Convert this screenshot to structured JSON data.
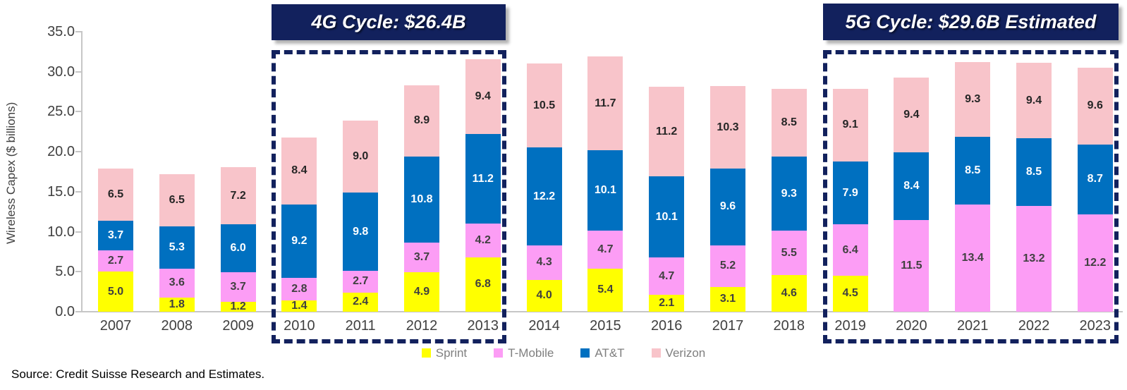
{
  "chart_data": {
    "type": "bar",
    "stacked": true,
    "title": "",
    "xlabel": "",
    "ylabel": "Wireless Capex ($ billions)",
    "ylim": [
      0,
      35
    ],
    "yticks": [
      0,
      5,
      10,
      15,
      20,
      25,
      30,
      35
    ],
    "grid": false,
    "legend_position": "bottom",
    "categories": [
      "2007",
      "2008",
      "2009",
      "2010",
      "2011",
      "2012",
      "2013",
      "2014",
      "2015",
      "2016",
      "2017",
      "2018",
      "2019",
      "2020",
      "2021",
      "2022",
      "2023"
    ],
    "series": [
      {
        "name": "Sprint",
        "color": "#FFFF00",
        "label_color": "#404040",
        "values": [
          5.0,
          1.8,
          1.2,
          1.4,
          2.4,
          4.9,
          6.8,
          4.0,
          5.4,
          2.1,
          3.1,
          4.6,
          4.5,
          null,
          null,
          null,
          null
        ]
      },
      {
        "name": "T-Mobile",
        "color": "#FC9DF5",
        "label_color": "#404040",
        "values": [
          2.7,
          3.6,
          3.7,
          2.8,
          2.7,
          3.7,
          4.2,
          4.3,
          4.7,
          4.7,
          5.2,
          5.5,
          6.4,
          11.5,
          13.4,
          13.2,
          12.2
        ]
      },
      {
        "name": "AT&T",
        "color": "#0070C0",
        "label_color": "#FFFFFF",
        "values": [
          3.7,
          5.3,
          6.0,
          9.2,
          9.8,
          10.8,
          11.2,
          12.2,
          10.1,
          10.1,
          9.6,
          9.3,
          7.9,
          8.4,
          8.5,
          8.5,
          8.7
        ]
      },
      {
        "name": "Verizon",
        "color": "#F8C4CA",
        "label_color": "#262626",
        "values": [
          6.5,
          6.5,
          7.2,
          8.4,
          9.0,
          8.9,
          9.4,
          10.5,
          11.7,
          11.2,
          10.3,
          8.5,
          9.1,
          9.4,
          9.3,
          9.4,
          9.6
        ]
      }
    ],
    "annotations": [
      {
        "label": "4G Cycle: $26.4B",
        "from": "2010",
        "to": "2013"
      },
      {
        "label": "5G Cycle: $29.6B Estimated",
        "from": "2019",
        "to": "2023"
      }
    ]
  },
  "source_note": "Source: Credit Suisse Research and Estimates.",
  "colors": {
    "annotation_navy": "#12215D",
    "sprint_yellow": "#FFFF00",
    "tmobile_pink": "#FC9DF5",
    "att_blue": "#0070C0",
    "verizon_pink": "#F8C4CA",
    "axis_line": "#C6C6C6",
    "axis_text": "#404040",
    "legend_text": "#7F7F7F"
  }
}
